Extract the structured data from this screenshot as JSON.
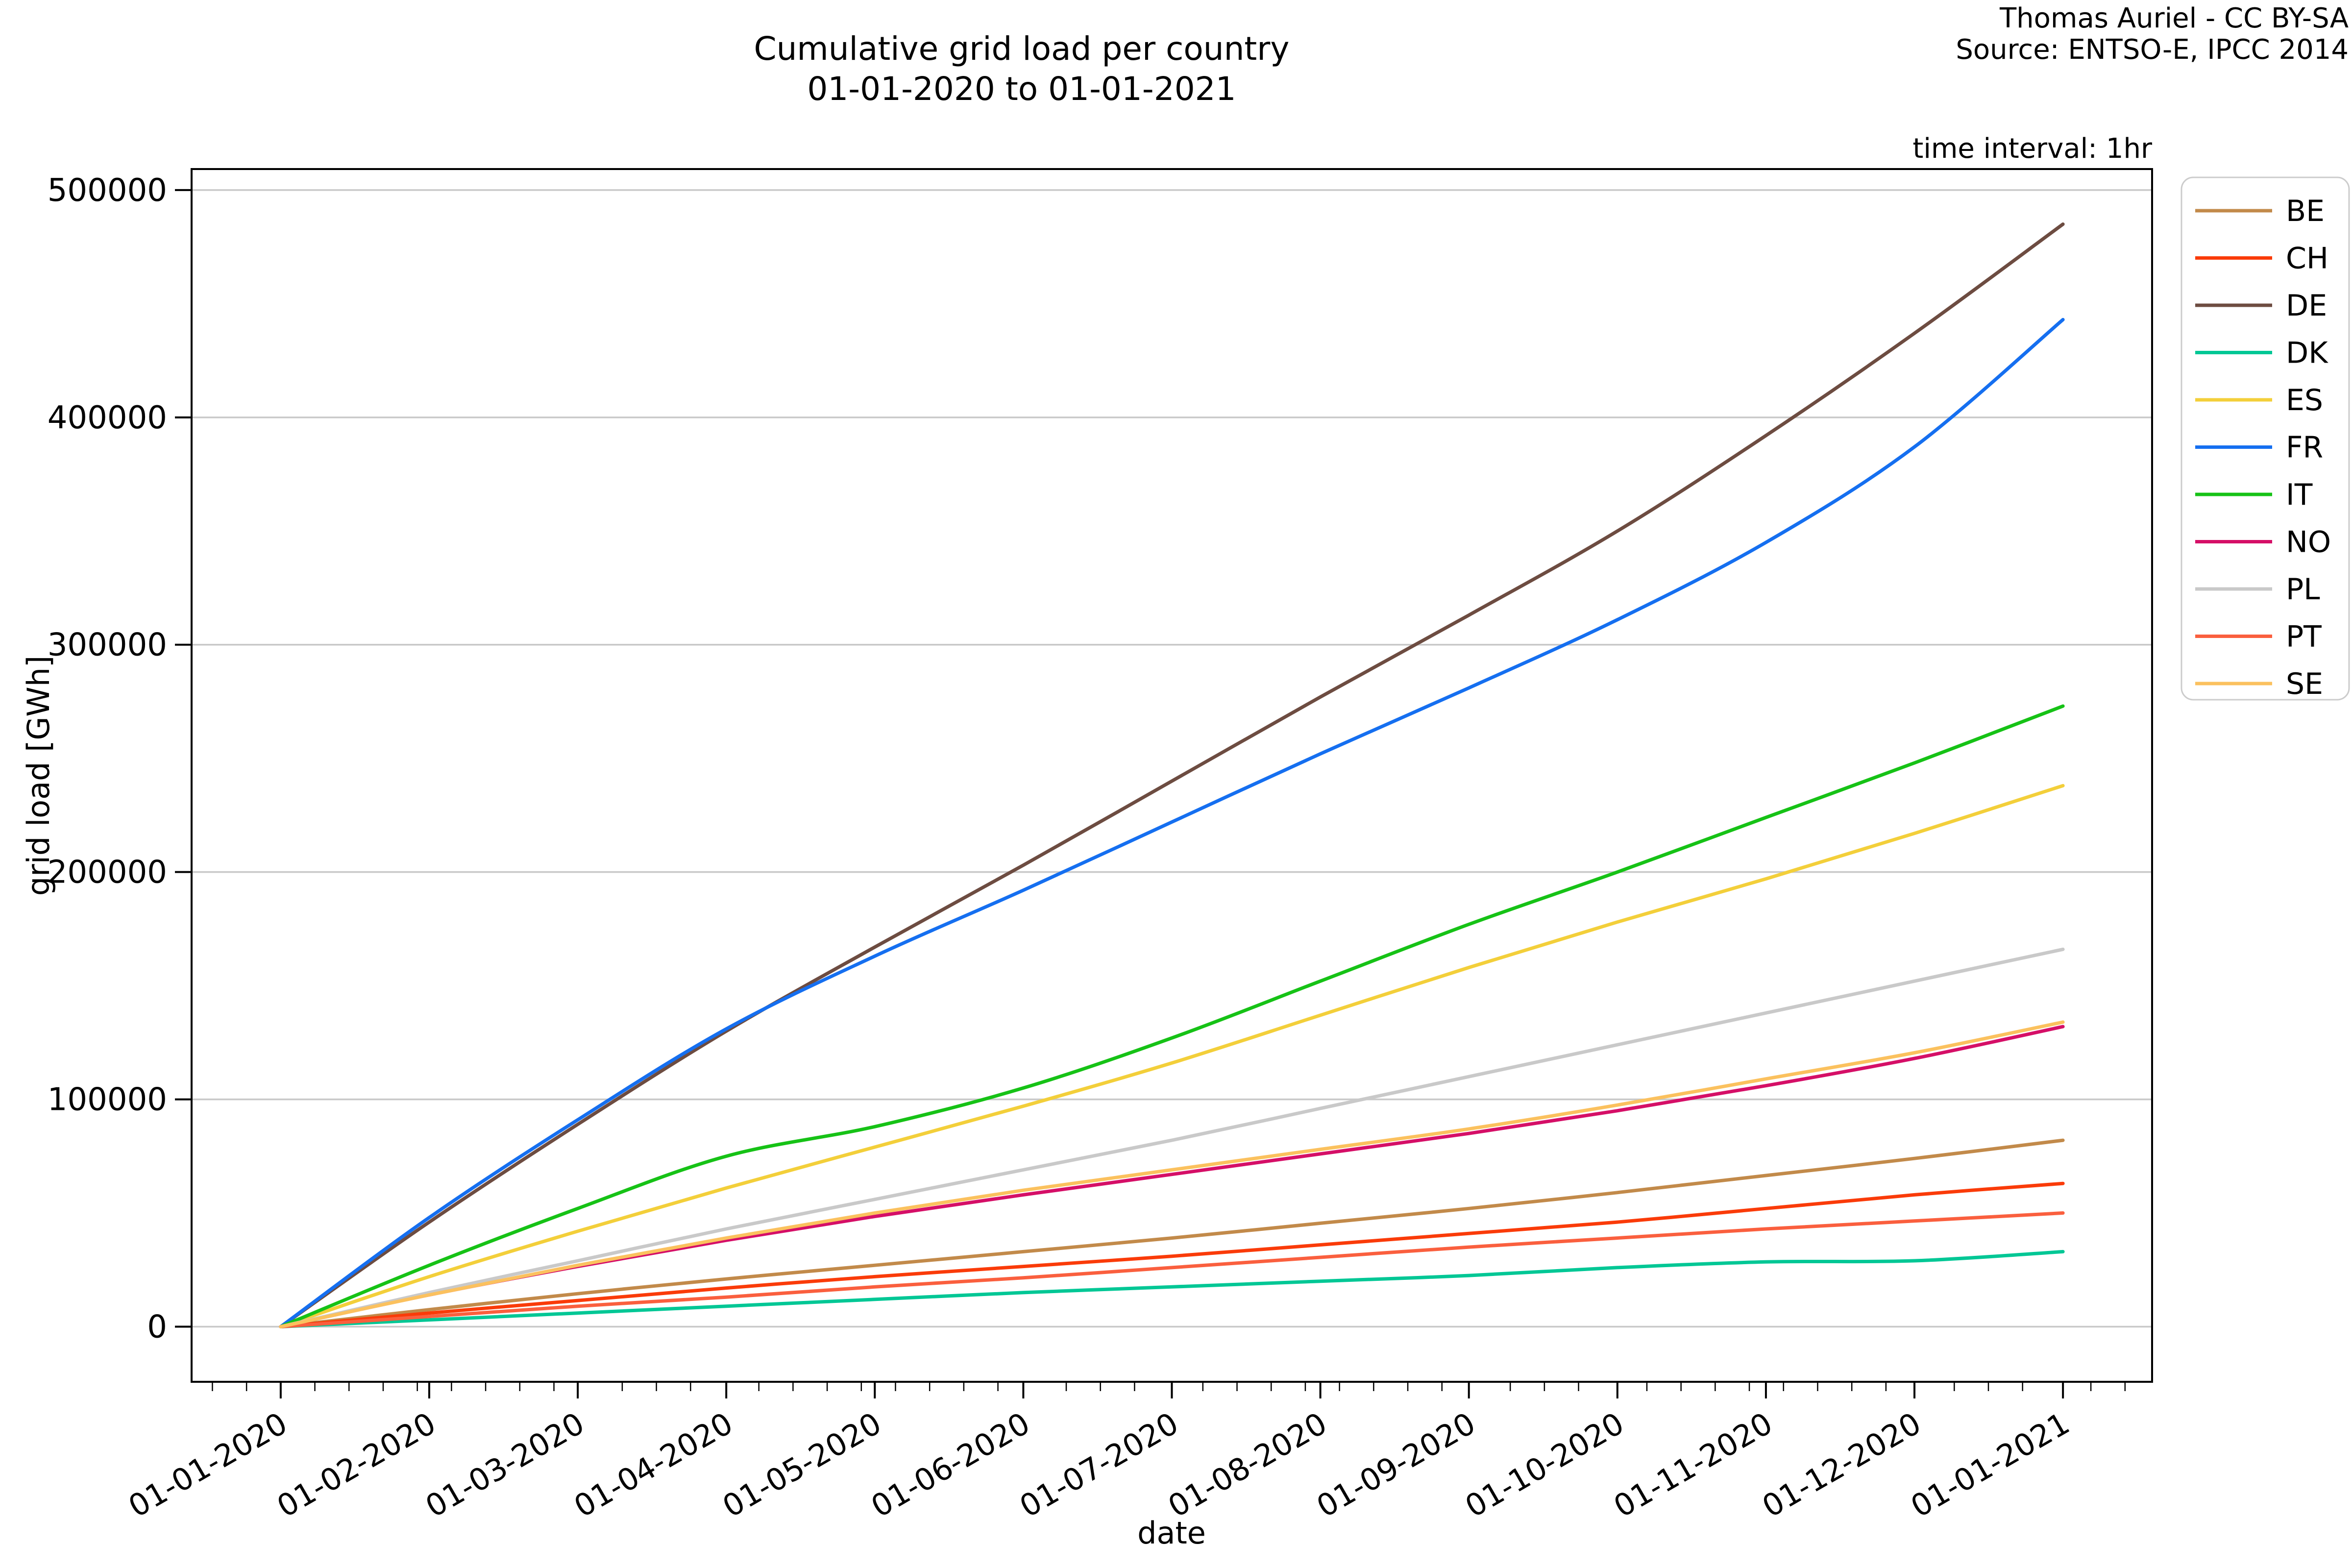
{
  "title": {
    "line1": "Cumulative grid load per country",
    "line2": "01-01-2020 to 01-01-2021"
  },
  "attribution": {
    "line1": "Thomas Auriel - CC BY-SA",
    "line2": "Source: ENTSO-E, IPCC 2014"
  },
  "annotation": "time interval: 1hr",
  "chart_data": {
    "type": "line",
    "title": "Cumulative grid load per country 01-01-2020 to 01-01-2021",
    "xlabel": "date",
    "ylabel": "grid load [GWh]",
    "grid": "horizontal",
    "legend_position": "right",
    "x_tick_labels": [
      "01-01-2020",
      "01-02-2020",
      "01-03-2020",
      "01-04-2020",
      "01-05-2020",
      "01-06-2020",
      "01-07-2020",
      "01-08-2020",
      "01-09-2020",
      "01-10-2020",
      "01-11-2020",
      "01-12-2020",
      "01-01-2021"
    ],
    "y_ticks": [
      0,
      100000,
      200000,
      300000,
      400000,
      500000
    ],
    "y_tick_labels": [
      "0",
      "100000",
      "200000",
      "300000",
      "400000",
      "500000"
    ],
    "xlim_months": [
      -0.6,
      12.6
    ],
    "ylim": [
      -24250,
      509250
    ],
    "x_unit": "months since 01-01-2020",
    "series": [
      {
        "name": "BE",
        "color": "#c28a4a",
        "values": [
          0,
          7500,
          14500,
          21000,
          27000,
          33000,
          39000,
          45500,
          52000,
          59000,
          66500,
          74000,
          82000
        ]
      },
      {
        "name": "CH",
        "color": "#fa3b09",
        "values": [
          0,
          6000,
          11500,
          17000,
          22000,
          26500,
          31000,
          36000,
          41000,
          46000,
          52000,
          58000,
          63000
        ]
      },
      {
        "name": "DE",
        "color": "#6d4c41",
        "values": [
          0,
          46000,
          89000,
          130000,
          167000,
          203000,
          240000,
          277000,
          313000,
          350000,
          392000,
          437000,
          485000
        ]
      },
      {
        "name": "DK",
        "color": "#00c795",
        "values": [
          0,
          3000,
          6000,
          9000,
          12000,
          15000,
          17500,
          20000,
          22500,
          26000,
          28500,
          29000,
          33000
        ]
      },
      {
        "name": "ES",
        "color": "#f3cf3a",
        "values": [
          0,
          22000,
          42000,
          61000,
          79000,
          97000,
          116000,
          137000,
          158000,
          178000,
          197000,
          217000,
          238000
        ]
      },
      {
        "name": "FR",
        "color": "#156ff0",
        "values": [
          0,
          48000,
          91000,
          131000,
          163000,
          192000,
          222000,
          252000,
          281000,
          311000,
          345000,
          387000,
          443000
        ]
      },
      {
        "name": "IT",
        "color": "#16c216",
        "values": [
          0,
          27000,
          52000,
          75000,
          88000,
          105000,
          127000,
          152000,
          177000,
          200000,
          224000,
          248000,
          273000
        ]
      },
      {
        "name": "NO",
        "color": "#d50f67",
        "values": [
          0,
          14000,
          26500,
          38000,
          48500,
          58000,
          67000,
          76000,
          85000,
          95000,
          106000,
          118000,
          132000
        ]
      },
      {
        "name": "PL",
        "color": "#c9c9c9",
        "values": [
          0,
          15000,
          29000,
          43000,
          56000,
          69000,
          82000,
          96000,
          110000,
          124000,
          138000,
          152000,
          166000
        ]
      },
      {
        "name": "PT",
        "color": "#fa5f3e",
        "values": [
          0,
          4500,
          9000,
          13000,
          17500,
          21500,
          26000,
          30500,
          35000,
          39000,
          43000,
          46500,
          50000
        ]
      },
      {
        "name": "SE",
        "color": "#fbc15e",
        "values": [
          0,
          14000,
          27000,
          39000,
          50000,
          60000,
          69000,
          78000,
          87000,
          97500,
          109000,
          120500,
          134000
        ]
      }
    ]
  },
  "colors": {
    "grid": "#c9c9c9",
    "spine": "#000000",
    "text": "#000000",
    "legend_border": "#cccccc",
    "background": "#ffffff"
  }
}
